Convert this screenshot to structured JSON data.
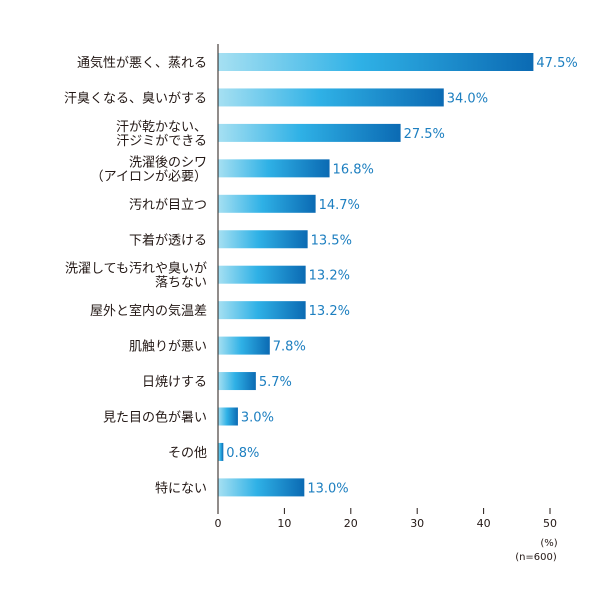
{
  "chart_data": {
    "type": "bar",
    "orientation": "horizontal",
    "categories": [
      [
        "通気性が悪く、蒸れる"
      ],
      [
        "汗臭くなる、臭いがする"
      ],
      [
        "汗が乾かない、",
        "汗ジミができる"
      ],
      [
        "洗濯後のシワ",
        "（アイロンが必要）"
      ],
      [
        "汚れが目立つ"
      ],
      [
        "下着が透ける"
      ],
      [
        "洗濯しても汚れや臭いが",
        "落ちない"
      ],
      [
        "屋外と室内の気温差"
      ],
      [
        "肌触りが悪い"
      ],
      [
        "日焼けする"
      ],
      [
        "見た目の色が暑い"
      ],
      [
        "その他"
      ],
      [
        "特にない"
      ]
    ],
    "values": [
      47.5,
      34.0,
      27.5,
      16.8,
      14.7,
      13.5,
      13.2,
      13.2,
      7.8,
      5.7,
      3.0,
      0.8,
      13.0
    ],
    "value_labels": [
      "47.5%",
      "34.0%",
      "27.5%",
      "16.8%",
      "14.7%",
      "13.5%",
      "13.2%",
      "13.2%",
      "7.8%",
      "5.7%",
      "3.0%",
      "0.8%",
      "13.0%"
    ],
    "xlim": [
      0,
      50
    ],
    "xticks": [
      0,
      10,
      20,
      30,
      40,
      50
    ],
    "unit_label": "(%)",
    "sample_label": "(n=600)",
    "grid": false,
    "colors": {
      "bar_start": "#a6e0f2",
      "bar_mid": "#2fb1e6",
      "bar_end": "#0b6ab3",
      "value_text": "#1d7fc0",
      "axis": "#231815"
    }
  }
}
